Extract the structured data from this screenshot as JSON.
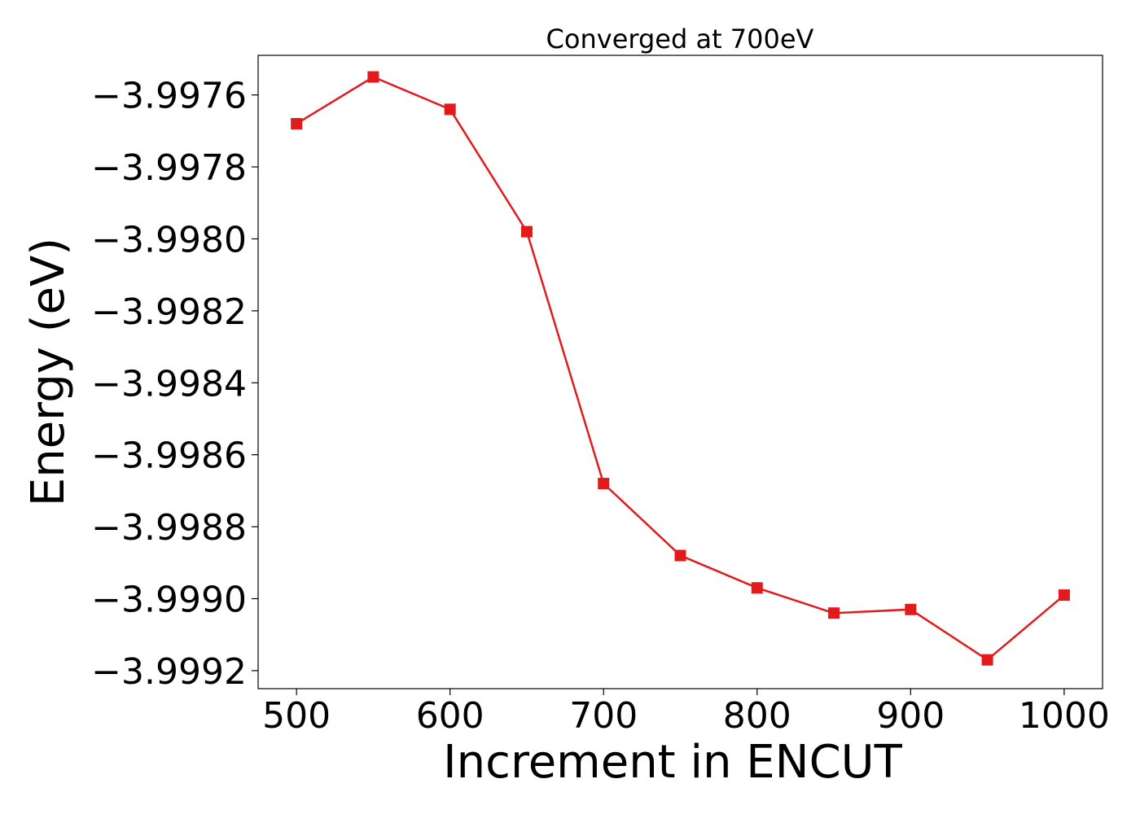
{
  "chart_data": {
    "type": "line",
    "title": "Converged at 700eV",
    "xlabel": "Increment in ENCUT",
    "ylabel": "Energy (eV)",
    "xlim": [
      475,
      1025
    ],
    "ylim": [
      -3.99925,
      -3.99749
    ],
    "xticks": [
      500,
      600,
      700,
      800,
      900,
      1000
    ],
    "xtick_labels": [
      "500",
      "600",
      "700",
      "800",
      "900",
      "1000"
    ],
    "yticks": [
      -3.9992,
      -3.999,
      -3.9988,
      -3.9986,
      -3.9984,
      -3.9982,
      -3.998,
      -3.9978,
      -3.9976
    ],
    "ytick_labels": [
      "−3.9992",
      "−3.9990",
      "−3.9988",
      "−3.9986",
      "−3.9984",
      "−3.9982",
      "−3.9980",
      "−3.9978",
      "−3.9976"
    ],
    "grid": false,
    "series": [
      {
        "color": "#e31a1c",
        "marker": "square",
        "x": [
          500,
          550,
          600,
          650,
          700,
          750,
          800,
          850,
          900,
          950,
          1000
        ],
        "y": [
          -3.99768,
          -3.99755,
          -3.99764,
          -3.99798,
          -3.99868,
          -3.99888,
          -3.99897,
          -3.99904,
          -3.99903,
          -3.99917,
          -3.99899
        ]
      }
    ]
  }
}
